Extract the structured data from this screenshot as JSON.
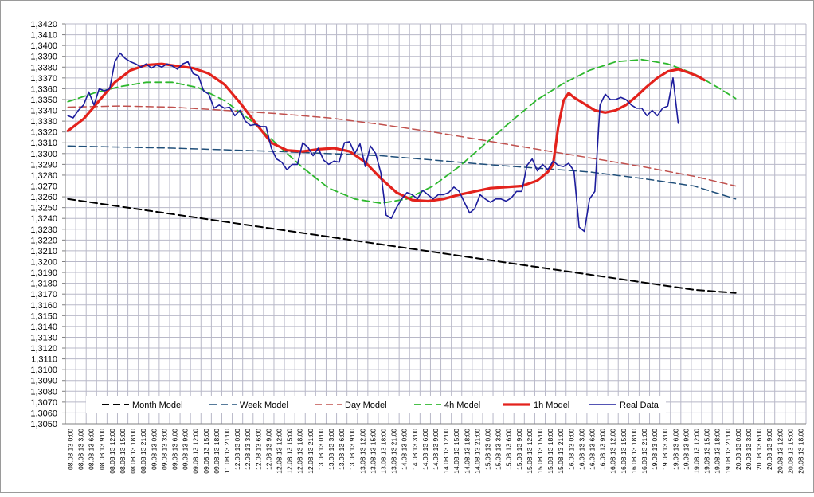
{
  "chart_data": {
    "type": "line",
    "title": "",
    "xlabel": "",
    "ylabel": "",
    "ylim": [
      1.305,
      1.342
    ],
    "y_tick_step": 0.001,
    "y_tick_labels": [
      "1,3050",
      "1,3060",
      "1,3070",
      "1,3080",
      "1,3090",
      "1,3100",
      "1,3110",
      "1,3120",
      "1,3130",
      "1,3140",
      "1,3150",
      "1,3160",
      "1,3170",
      "1,3180",
      "1,3190",
      "1,3200",
      "1,3210",
      "1,3220",
      "1,3230",
      "1,3240",
      "1,3250",
      "1,3260",
      "1,3270",
      "1,3280",
      "1,3290",
      "1,3300",
      "1,3310",
      "1,3320",
      "1,3330",
      "1,3340",
      "1,3350",
      "1,3360",
      "1,3370",
      "1,3380",
      "1,3390",
      "1,3400",
      "1,3410",
      "1,3420"
    ],
    "x_tick_labels": [
      "08.08.13 0:00",
      "08.08.13 3:00",
      "08.08.13 6:00",
      "08.08.13 9:00",
      "08.08.13 12:00",
      "08.08.13 15:00",
      "08.08.13 18:00",
      "08.08.13 21:00",
      "09.08.13 0:00",
      "09.08.13 3:00",
      "09.08.13 6:00",
      "09.08.13 9:00",
      "09.08.13 12:00",
      "09.08.13 15:00",
      "09.08.13 18:00",
      "11.08.13 21:00",
      "12.08.13 0:00",
      "12.08.13 3:00",
      "12.08.13 6:00",
      "12.08.13 9:00",
      "12.08.13 12:00",
      "12.08.13 15:00",
      "12.08.13 18:00",
      "12.08.13 21:00",
      "13.08.13 0:00",
      "13.08.13 3:00",
      "13.08.13 6:00",
      "13.08.13 9:00",
      "13.08.13 12:00",
      "13.08.13 15:00",
      "13.08.13 18:00",
      "13.08.13 21:00",
      "14.08.13 0:00",
      "14.08.13 3:00",
      "14.08.13 6:00",
      "14.08.13 9:00",
      "14.08.13 12:00",
      "14.08.13 15:00",
      "14.08.13 18:00",
      "14.08.13 21:00",
      "15.08.13 0:00",
      "15.08.13 3:00",
      "15.08.13 6:00",
      "15.08.13 9:00",
      "15.08.13 12:00",
      "15.08.13 15:00",
      "15.08.13 18:00",
      "15.08.13 21:00",
      "16.08.13 0:00",
      "16.08.13 3:00",
      "16.08.13 6:00",
      "16.08.13 9:00",
      "16.08.13 12:00",
      "16.08.13 15:00",
      "16.08.13 18:00",
      "16.08.13 21:00",
      "19.08.13 0:00",
      "19.08.13 3:00",
      "19.08.13 6:00",
      "19.08.13 9:00",
      "19.08.13 12:00",
      "19.08.13 15:00",
      "19.08.13 18:00",
      "19.08.13 21:00",
      "20.08.13 0:00",
      "20.08.13 3:00",
      "20.08.13 6:00",
      "20.08.13 9:00",
      "20.08.13 12:00",
      "20.08.13 15:00",
      "20.08.13 18:00"
    ],
    "legend": [
      "Month Model",
      "Week Model",
      "Day Model",
      "4h Model",
      "1h Model",
      "Real Data"
    ],
    "legend_position": "bottom-inside",
    "grid": true,
    "series": [
      {
        "name": "Month Model",
        "color": "#000000",
        "style": "dashed",
        "points": [
          [
            0,
            1.3258
          ],
          [
            10,
            1.3251
          ],
          [
            20,
            1.3244
          ],
          [
            30,
            1.3237
          ],
          [
            40,
            1.323
          ],
          [
            50,
            1.3223
          ],
          [
            60,
            1.3216
          ],
          [
            70,
            1.3209
          ],
          [
            80,
            1.3202
          ],
          [
            90,
            1.3195
          ],
          [
            100,
            1.3188
          ],
          [
            110,
            1.3181
          ],
          [
            120,
            1.3174
          ],
          [
            128,
            1.3171
          ]
        ]
      },
      {
        "name": "Week Model",
        "color": "#1f4e79",
        "style": "dashed",
        "points": [
          [
            0,
            1.3307
          ],
          [
            20,
            1.3305
          ],
          [
            40,
            1.3302
          ],
          [
            60,
            1.3298
          ],
          [
            80,
            1.329
          ],
          [
            100,
            1.3283
          ],
          [
            110,
            1.3277
          ],
          [
            120,
            1.327
          ],
          [
            128,
            1.3258
          ]
        ]
      },
      {
        "name": "Day Model",
        "color": "#c0504d",
        "style": "dashed",
        "points": [
          [
            0,
            1.3343
          ],
          [
            10,
            1.3344
          ],
          [
            20,
            1.3343
          ],
          [
            30,
            1.334
          ],
          [
            40,
            1.3337
          ],
          [
            50,
            1.3333
          ],
          [
            60,
            1.3327
          ],
          [
            70,
            1.332
          ],
          [
            80,
            1.3312
          ],
          [
            90,
            1.3304
          ],
          [
            100,
            1.3296
          ],
          [
            110,
            1.3288
          ],
          [
            120,
            1.3279
          ],
          [
            128,
            1.327
          ]
        ]
      },
      {
        "name": "4h Model",
        "color": "#2eb82e",
        "style": "dashed",
        "points": [
          [
            0,
            1.3348
          ],
          [
            5,
            1.3356
          ],
          [
            10,
            1.3362
          ],
          [
            15,
            1.3366
          ],
          [
            20,
            1.3366
          ],
          [
            25,
            1.3361
          ],
          [
            30,
            1.3349
          ],
          [
            35,
            1.3331
          ],
          [
            40,
            1.3309
          ],
          [
            45,
            1.3287
          ],
          [
            50,
            1.3268
          ],
          [
            55,
            1.3258
          ],
          [
            60,
            1.3254
          ],
          [
            65,
            1.3258
          ],
          [
            70,
            1.327
          ],
          [
            75,
            1.3288
          ],
          [
            80,
            1.3309
          ],
          [
            85,
            1.333
          ],
          [
            90,
            1.335
          ],
          [
            95,
            1.3365
          ],
          [
            100,
            1.3377
          ],
          [
            105,
            1.3385
          ],
          [
            110,
            1.3387
          ],
          [
            115,
            1.3383
          ],
          [
            120,
            1.3374
          ],
          [
            125,
            1.336
          ],
          [
            128,
            1.3351
          ]
        ]
      },
      {
        "name": "1h Model",
        "color": "#e3221c",
        "style": "solid",
        "points": [
          [
            0,
            1.3321
          ],
          [
            3,
            1.3332
          ],
          [
            6,
            1.3349
          ],
          [
            9,
            1.3366
          ],
          [
            12,
            1.3377
          ],
          [
            15,
            1.3382
          ],
          [
            18,
            1.3383
          ],
          [
            21,
            1.3381
          ],
          [
            24,
            1.3379
          ],
          [
            27,
            1.3374
          ],
          [
            30,
            1.3364
          ],
          [
            33,
            1.3347
          ],
          [
            36,
            1.3328
          ],
          [
            39,
            1.331
          ],
          [
            42,
            1.3303
          ],
          [
            45,
            1.3302
          ],
          [
            48,
            1.3304
          ],
          [
            51,
            1.3305
          ],
          [
            54,
            1.3302
          ],
          [
            57,
            1.3292
          ],
          [
            60,
            1.3277
          ],
          [
            63,
            1.3264
          ],
          [
            66,
            1.3257
          ],
          [
            69,
            1.3256
          ],
          [
            72,
            1.3258
          ],
          [
            75,
            1.3262
          ],
          [
            78,
            1.3265
          ],
          [
            81,
            1.3268
          ],
          [
            84,
            1.3269
          ],
          [
            87,
            1.327
          ],
          [
            90,
            1.3275
          ],
          [
            92,
            1.3283
          ],
          [
            93,
            1.329
          ],
          [
            94,
            1.3325
          ],
          [
            95,
            1.3349
          ],
          [
            96,
            1.3356
          ],
          [
            97,
            1.3352
          ],
          [
            99,
            1.3346
          ],
          [
            101,
            1.334
          ],
          [
            103,
            1.3338
          ],
          [
            105,
            1.334
          ],
          [
            107,
            1.3345
          ],
          [
            109,
            1.3353
          ],
          [
            111,
            1.3362
          ],
          [
            113,
            1.337
          ],
          [
            115,
            1.3376
          ],
          [
            117,
            1.3378
          ],
          [
            119,
            1.3375
          ],
          [
            121,
            1.3371
          ],
          [
            122,
            1.3368
          ]
        ]
      },
      {
        "name": "Real Data",
        "color": "#1c1c9c",
        "style": "solid",
        "points": [
          [
            0,
            1.3335
          ],
          [
            1,
            1.3333
          ],
          [
            2,
            1.334
          ],
          [
            3,
            1.3345
          ],
          [
            4,
            1.3357
          ],
          [
            5,
            1.3345
          ],
          [
            6,
            1.336
          ],
          [
            7,
            1.3358
          ],
          [
            8,
            1.336
          ],
          [
            9,
            1.3385
          ],
          [
            10,
            1.3393
          ],
          [
            11,
            1.3388
          ],
          [
            12,
            1.3385
          ],
          [
            13,
            1.3383
          ],
          [
            14,
            1.338
          ],
          [
            15,
            1.3383
          ],
          [
            16,
            1.3379
          ],
          [
            17,
            1.3382
          ],
          [
            18,
            1.338
          ],
          [
            19,
            1.3383
          ],
          [
            20,
            1.3381
          ],
          [
            21,
            1.3378
          ],
          [
            22,
            1.3383
          ],
          [
            23,
            1.3385
          ],
          [
            24,
            1.3374
          ],
          [
            25,
            1.3372
          ],
          [
            26,
            1.3358
          ],
          [
            27,
            1.3355
          ],
          [
            28,
            1.3342
          ],
          [
            29,
            1.3345
          ],
          [
            30,
            1.3342
          ],
          [
            31,
            1.3343
          ],
          [
            32,
            1.3335
          ],
          [
            33,
            1.334
          ],
          [
            34,
            1.333
          ],
          [
            35,
            1.3326
          ],
          [
            36,
            1.3327
          ],
          [
            37,
            1.3325
          ],
          [
            38,
            1.3325
          ],
          [
            39,
            1.3305
          ],
          [
            40,
            1.3295
          ],
          [
            41,
            1.3292
          ],
          [
            42,
            1.3285
          ],
          [
            43,
            1.329
          ],
          [
            44,
            1.329
          ],
          [
            45,
            1.331
          ],
          [
            46,
            1.3306
          ],
          [
            47,
            1.3298
          ],
          [
            48,
            1.3305
          ],
          [
            49,
            1.3294
          ],
          [
            50,
            1.329
          ],
          [
            51,
            1.3293
          ],
          [
            52,
            1.3292
          ],
          [
            53,
            1.331
          ],
          [
            54,
            1.3311
          ],
          [
            55,
            1.33
          ],
          [
            56,
            1.3309
          ],
          [
            57,
            1.3288
          ],
          [
            58,
            1.3307
          ],
          [
            59,
            1.33
          ],
          [
            60,
            1.3282
          ],
          [
            61,
            1.3243
          ],
          [
            62,
            1.324
          ],
          [
            63,
            1.325
          ],
          [
            64,
            1.3258
          ],
          [
            65,
            1.3264
          ],
          [
            66,
            1.3262
          ],
          [
            67,
            1.3258
          ],
          [
            68,
            1.3266
          ],
          [
            69,
            1.3262
          ],
          [
            70,
            1.3258
          ],
          [
            71,
            1.3262
          ],
          [
            72,
            1.3262
          ],
          [
            73,
            1.3264
          ],
          [
            74,
            1.3269
          ],
          [
            75,
            1.3265
          ],
          [
            76,
            1.3255
          ],
          [
            77,
            1.3245
          ],
          [
            78,
            1.3249
          ],
          [
            79,
            1.3262
          ],
          [
            80,
            1.3258
          ],
          [
            81,
            1.3255
          ],
          [
            82,
            1.3258
          ],
          [
            83,
            1.3258
          ],
          [
            84,
            1.3256
          ],
          [
            85,
            1.3259
          ],
          [
            86,
            1.3265
          ],
          [
            87,
            1.3265
          ],
          [
            88,
            1.3289
          ],
          [
            89,
            1.3295
          ],
          [
            90,
            1.3284
          ],
          [
            91,
            1.329
          ],
          [
            92,
            1.3285
          ],
          [
            93,
            1.3293
          ],
          [
            94,
            1.3289
          ],
          [
            95,
            1.3288
          ],
          [
            96,
            1.3291
          ],
          [
            97,
            1.3284
          ],
          [
            98,
            1.3232
          ],
          [
            99,
            1.3228
          ],
          [
            100,
            1.3258
          ],
          [
            101,
            1.3265
          ],
          [
            102,
            1.3345
          ],
          [
            103,
            1.3355
          ],
          [
            104,
            1.335
          ],
          [
            105,
            1.335
          ],
          [
            106,
            1.3352
          ],
          [
            107,
            1.335
          ],
          [
            108,
            1.3345
          ],
          [
            109,
            1.3342
          ],
          [
            110,
            1.3342
          ],
          [
            111,
            1.3335
          ],
          [
            112,
            1.334
          ],
          [
            113,
            1.3335
          ],
          [
            114,
            1.3342
          ],
          [
            115,
            1.3344
          ],
          [
            116,
            1.337
          ],
          [
            117,
            1.3328
          ]
        ]
      }
    ]
  }
}
